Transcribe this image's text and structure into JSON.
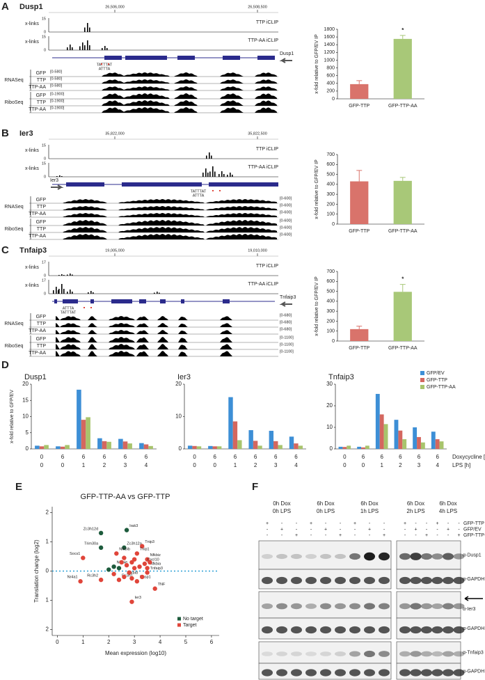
{
  "panel_letters": [
    "A",
    "B",
    "C",
    "D",
    "E",
    "F"
  ],
  "panels": [
    {
      "gene": "Dusp1",
      "coords": [
        "26,506,000",
        "26,508,500"
      ],
      "clip": [
        {
          "axis_label": "x-links",
          "top": "15",
          "bottom": "0",
          "name": "TTP iCLIP"
        },
        {
          "axis_label": "x-links",
          "top": "15",
          "bottom": "0",
          "name": "TTP-AA iCLIP"
        }
      ],
      "motifs": [
        "TATTTAT",
        "ATTTA"
      ],
      "gene_label": "Dusp1",
      "groups": [
        {
          "name": "RNASeq",
          "rows": [
            {
              "name": "GFP",
              "range": "[0-580]"
            },
            {
              "name": "TTP",
              "range": "[0-580]"
            },
            {
              "name": "TTP-AA",
              "range": "[0-580]"
            }
          ]
        },
        {
          "name": "RiboSeq",
          "rows": [
            {
              "name": "GFP",
              "range": "[0-1900]"
            },
            {
              "name": "TTP",
              "range": "[0-1900]"
            },
            {
              "name": "TTP-AA",
              "range": "[0-1900]"
            }
          ]
        }
      ]
    },
    {
      "gene": "Ier3",
      "coords": [
        "35,822,000",
        "35,822,500"
      ],
      "clip": [
        {
          "axis_label": "x-links",
          "top": "15",
          "bottom": "0",
          "name": "TTP iCLIP"
        },
        {
          "axis_label": "x-links",
          "top": "15",
          "bottom": "0",
          "name": "TTP-AA iCLIP"
        }
      ],
      "motifs": [
        "TATTTAT",
        "ATTTA"
      ],
      "gene_label": "Ier3",
      "groups": [
        {
          "name": "RNASeq",
          "rows": [
            {
              "name": "GFP",
              "range": "[0-600]"
            },
            {
              "name": "TTP",
              "range": "[0-600]"
            },
            {
              "name": "TTP-AA",
              "range": "[0-600]"
            }
          ]
        },
        {
          "name": "RiboSeq",
          "rows": [
            {
              "name": "GFP",
              "range": "[0-600]"
            },
            {
              "name": "TTP",
              "range": "[0-600]"
            },
            {
              "name": "TTP-AA",
              "range": "[0-600]"
            }
          ]
        }
      ]
    },
    {
      "gene": "Tnfaip3",
      "coords": [
        "19,005,000",
        "19,010,000"
      ],
      "clip": [
        {
          "axis_label": "x-links",
          "top": "17",
          "bottom": "0",
          "name": "TTP iCLIP"
        },
        {
          "axis_label": "x-links",
          "top": "17",
          "bottom": "0",
          "name": "TTP-AA iCLIP"
        }
      ],
      "motifs": [
        "ATTTA",
        "TATTTAT"
      ],
      "gene_label": "Tnfaip3",
      "groups": [
        {
          "name": "RNASeq",
          "rows": [
            {
              "name": "GFP",
              "range": "[0-680]"
            },
            {
              "name": "TTP",
              "range": "[0-680]"
            },
            {
              "name": "TTP-AA",
              "range": "[0-680]"
            }
          ]
        },
        {
          "name": "RiboSeq",
          "rows": [
            {
              "name": "GFP",
              "range": "[0-1100]"
            },
            {
              "name": "TTP",
              "range": "[0-1100]"
            },
            {
              "name": "TTP-AA",
              "range": "[0-1100]"
            }
          ]
        }
      ]
    }
  ],
  "chart_data": [
    {
      "type": "bar",
      "ylabel": "x-fold relative to GFP/EV IP",
      "categories": [
        "GFP-TTP",
        "GFP-TTP-AA"
      ],
      "values": [
        380,
        1550
      ],
      "errors": [
        90,
        90
      ],
      "colors": [
        "#d9736b",
        "#a8c878"
      ],
      "ylim": [
        0,
        1800
      ],
      "yticks": [
        0,
        200,
        400,
        600,
        800,
        1000,
        1200,
        1400,
        1600,
        1800
      ],
      "annotations": [
        null,
        "*"
      ]
    },
    {
      "type": "bar",
      "ylabel": "x-fold relative to GFP/EV IP",
      "categories": [
        "GFP-TTP",
        "GFP-TTP-AA"
      ],
      "values": [
        430,
        435
      ],
      "errors": [
        110,
        35
      ],
      "colors": [
        "#d9736b",
        "#a8c878"
      ],
      "ylim": [
        0,
        700
      ],
      "yticks": [
        0,
        100,
        200,
        300,
        400,
        500,
        600,
        700
      ],
      "annotations": [
        null,
        null
      ]
    },
    {
      "type": "bar",
      "ylabel": "x-fold relative to GFP/EV IP",
      "categories": [
        "GFP-TTP",
        "GFP-TTP-AA"
      ],
      "values": [
        120,
        495
      ],
      "errors": [
        30,
        75
      ],
      "colors": [
        "#d9736b",
        "#a8c878"
      ],
      "ylim": [
        0,
        700
      ],
      "yticks": [
        0,
        100,
        200,
        300,
        400,
        500,
        600,
        700
      ],
      "annotations": [
        null,
        "*"
      ]
    },
    {
      "type": "grouped_bar",
      "title": "Dusp1",
      "ylabel": "x-fold relative to GFP/EV",
      "categories": [
        [
          "0",
          "0"
        ],
        [
          "6",
          "0"
        ],
        [
          "6",
          "1"
        ],
        [
          "6",
          "2"
        ],
        [
          "6",
          "3"
        ],
        [
          "6",
          "4"
        ]
      ],
      "ylim": [
        0,
        20
      ],
      "yticks": [
        0,
        5,
        10,
        15,
        20
      ],
      "series": [
        {
          "color": "#3d8fd6",
          "values": [
            1.0,
            0.8,
            18.3,
            3.3,
            3.1,
            1.8
          ]
        },
        {
          "color": "#d4675f",
          "values": [
            0.8,
            0.7,
            9.0,
            2.4,
            2.3,
            1.4
          ]
        },
        {
          "color": "#a8c46c",
          "values": [
            1.2,
            1.2,
            9.8,
            2.2,
            1.7,
            0.9
          ]
        }
      ]
    },
    {
      "type": "grouped_bar",
      "title": "Ier3",
      "categories": [
        [
          "0",
          "0"
        ],
        [
          "6",
          "0"
        ],
        [
          "6",
          "1"
        ],
        [
          "6",
          "2"
        ],
        [
          "6",
          "3"
        ],
        [
          "6",
          "4"
        ]
      ],
      "ylim": [
        0,
        20
      ],
      "yticks": [
        0,
        10,
        20
      ],
      "series": [
        {
          "color": "#3d8fd6",
          "values": [
            1.0,
            0.9,
            16.0,
            5.8,
            5.6,
            3.8
          ]
        },
        {
          "color": "#d4675f",
          "values": [
            0.9,
            0.8,
            8.5,
            2.5,
            2.4,
            1.7
          ]
        },
        {
          "color": "#a8c46c",
          "values": [
            0.8,
            0.8,
            2.7,
            1.0,
            1.2,
            1.0
          ]
        }
      ]
    },
    {
      "type": "grouped_bar",
      "title": "Tnfaip3",
      "category_labels": [
        "Doxycycline [h]",
        "LPS [h]"
      ],
      "categories": [
        [
          "0",
          "0"
        ],
        [
          "6",
          "0"
        ],
        [
          "6",
          "1"
        ],
        [
          "6",
          "2"
        ],
        [
          "6",
          "3"
        ],
        [
          "6",
          "4"
        ]
      ],
      "ylim": [
        0,
        30
      ],
      "yticks": [
        0,
        10,
        20,
        30
      ],
      "legend": "top-right",
      "series": [
        {
          "name": "GFP/EV",
          "color": "#3d8fd6",
          "values": [
            1.0,
            1.0,
            25.5,
            13.5,
            10.0,
            8.0
          ]
        },
        {
          "name": "GFP-TTP",
          "color": "#d4675f",
          "values": [
            0.9,
            0.7,
            16.0,
            8.5,
            5.5,
            4.5
          ]
        },
        {
          "name": "GFP-TTP-AA",
          "color": "#a8c46c",
          "values": [
            1.5,
            1.5,
            11.5,
            4.5,
            3.0,
            3.5
          ]
        }
      ]
    },
    {
      "type": "scatter",
      "title": "GFP-TTP-AA vs GFP-TTP",
      "xlabel": "Mean expression (log10)",
      "ylabel": "Translation change (log2)",
      "xlim": [
        -0.2,
        6.3
      ],
      "xticks": [
        0,
        1,
        2,
        3,
        4,
        5,
        6
      ],
      "ylim": [
        -2.2,
        2.2
      ],
      "yticks": [
        {
          "value": -2,
          "label": "2"
        },
        {
          "value": -1,
          "label": "1"
        },
        0,
        1,
        2
      ],
      "hline": 0,
      "legend": "bottom-right",
      "series": [
        {
          "name": "No target",
          "color": "#1d5b3c",
          "x": [
            1.7,
            2.7,
            1.7,
            2.6,
            2.2,
            2.0,
            2.4
          ],
          "values": [
            1.3,
            1.4,
            0.8,
            0.8,
            0.15,
            0.05,
            0.1
          ],
          "labels": [
            "Zc3h12d",
            "Irak3",
            "Trim30a",
            "Zc3h12a",
            "Nfkbie",
            null,
            null
          ]
        },
        {
          "name": "Target",
          "color": "#e0453a",
          "x": [
            1.0,
            2.3,
            3.3,
            3.1,
            3.5,
            3.4,
            3.5,
            3.5,
            0.9,
            1.7,
            2.4,
            2.6,
            3.1,
            3.8,
            2.9,
            2.5,
            2.7,
            2.9,
            3.0,
            2.8,
            3.2,
            2.6,
            3.0,
            2.2,
            3.3,
            2.9,
            3.6
          ],
          "values": [
            0.45,
            0.6,
            0.85,
            0.6,
            0.4,
            0.25,
            0.1,
            -0.05,
            -0.35,
            -0.3,
            -0.3,
            -0.2,
            -0.35,
            -0.6,
            -1.05,
            0.3,
            0.2,
            0.3,
            0.1,
            -0.05,
            0.15,
            0.45,
            0.4,
            -0.1,
            -0.2,
            -0.25,
            0.3
          ],
          "labels": [
            "Socs1",
            "Nfkbib",
            "Tnip3",
            "Tnip1",
            "Nfkbiz",
            "Cxcl10",
            "Nfkbia",
            "Tnfaip3",
            "Nr4a1",
            "Rc3h2",
            "Rc3h1",
            "Nfkbid",
            "Dusp1",
            "TNF",
            "Ier3",
            null,
            null,
            null,
            null,
            null,
            null,
            null,
            null,
            null,
            null,
            null,
            null
          ]
        }
      ]
    }
  ],
  "blot": {
    "conditions": [
      [
        "0h Dox",
        "0h LPS"
      ],
      [
        "6h Dox",
        "0h LPS"
      ],
      [
        "6h Dox",
        "1h LPS"
      ],
      [
        "6h Dox",
        "2h LPS"
      ],
      [
        "6h Dox",
        "4h LPS"
      ]
    ],
    "rows": [
      {
        "name": "GFP-TTP",
        "marks": [
          "+",
          "-",
          "-",
          "+",
          "-",
          "-",
          "+",
          "-",
          "-",
          "+",
          "-",
          "-",
          "+",
          "-",
          "-"
        ]
      },
      {
        "name": "GFP/EV",
        "marks": [
          "-",
          "+",
          "-",
          "-",
          "+",
          "-",
          "-",
          "+",
          "-",
          "-",
          "+",
          "-",
          "-",
          "+",
          "-"
        ]
      },
      {
        "name": "GFP-TTP-AA",
        "marks": [
          "-",
          "-",
          "+",
          "-",
          "-",
          "+",
          "-",
          "-",
          "+",
          "-",
          "-",
          "+",
          "-",
          "-",
          "+"
        ]
      }
    ],
    "antibodies": [
      "α-Dusp1",
      "α-GAPDH",
      "α-Ier3",
      "α-GAPDH",
      "α-Tnfaip3",
      "α-GAPDH"
    ]
  }
}
